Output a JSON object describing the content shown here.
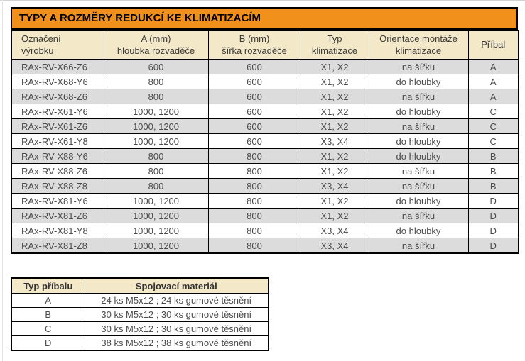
{
  "colors": {
    "accent_orange": "#F2901C",
    "header_beige": "#F3E8C8",
    "row_gray": "#DCDCDC",
    "row_white": "#FFFFFF",
    "border_black": "#000000",
    "text_gray": "#4B4B4B"
  },
  "title_bar": {
    "text": "TYPY A ROZMĚRY REDUKCÍ KE KLIMATIZACÍM"
  },
  "main_table": {
    "headers": [
      {
        "line1": "Označení",
        "line2": "výrobku"
      },
      {
        "line1": "A (mm)",
        "line2": "hloubka rozvaděče"
      },
      {
        "line1": "B (mm)",
        "line2": "šířka rozvaděče"
      },
      {
        "line1": "Typ",
        "line2": "klimatizace"
      },
      {
        "line1": "Orientace montáže",
        "line2": "klimatizace"
      },
      {
        "line1": "Příbal",
        "line2": ""
      }
    ],
    "rows": [
      [
        "RAx-RV-X66-Z6",
        "600",
        "600",
        "X1, X2",
        "na šířku",
        "A"
      ],
      [
        "RAx-RV-X68-Y6",
        "800",
        "600",
        "X1, X2",
        "do hloubky",
        "A"
      ],
      [
        "RAx-RV-X68-Z6",
        "800",
        "600",
        "X1, X2",
        "na šířku",
        "A"
      ],
      [
        "RAx-RV-X61-Y6",
        "1000, 1200",
        "600",
        "X1, X2",
        "do hloubky",
        "C"
      ],
      [
        "RAx-RV-X61-Z6",
        "1000, 1200",
        "600",
        "X1, X2",
        "na šířku",
        "C"
      ],
      [
        "RAx-RV-X61-Y8",
        "1000, 1200",
        "600",
        "X3, X4",
        "do hloubky",
        "C"
      ],
      [
        "RAx-RV-X88-Y6",
        "800",
        "800",
        "X1, X2",
        "do hloubky",
        "B"
      ],
      [
        "RAx-RV-X88-Z6",
        "800",
        "800",
        "X1, X2",
        "na šířku",
        "B"
      ],
      [
        "RAx-RV-X88-Z8",
        "800",
        "800",
        "X3, X4",
        "na šířku",
        "B"
      ],
      [
        "RAx-RV-X81-Y6",
        "1000, 1200",
        "800",
        "X1, X2",
        "do hloubky",
        "D"
      ],
      [
        "RAx-RV-X81-Z6",
        "1000, 1200",
        "800",
        "X1, X2",
        "na šířku",
        "D"
      ],
      [
        "RAx-RV-X81-Y8",
        "1000, 1200",
        "800",
        "X3, X4",
        "do hloubky",
        "D"
      ],
      [
        "RAx-RV-X81-Z8",
        "1000, 1200",
        "800",
        "X3, X4",
        "na šířku",
        "D"
      ]
    ]
  },
  "accessory_table": {
    "headers": {
      "col1": "Typ příbalu",
      "col2": "Spojovací materiál"
    },
    "rows": [
      [
        "A",
        "24 ks M5x12 ; 24 ks gumové těsnění"
      ],
      [
        "B",
        "30 ks M5x12 ; 30 ks gumové těsnění"
      ],
      [
        "C",
        "30 ks M5x12 ; 30 ks gumové těsnění"
      ],
      [
        "D",
        "38 ks M5x12 ; 38 ks gumové těsnění"
      ]
    ]
  }
}
